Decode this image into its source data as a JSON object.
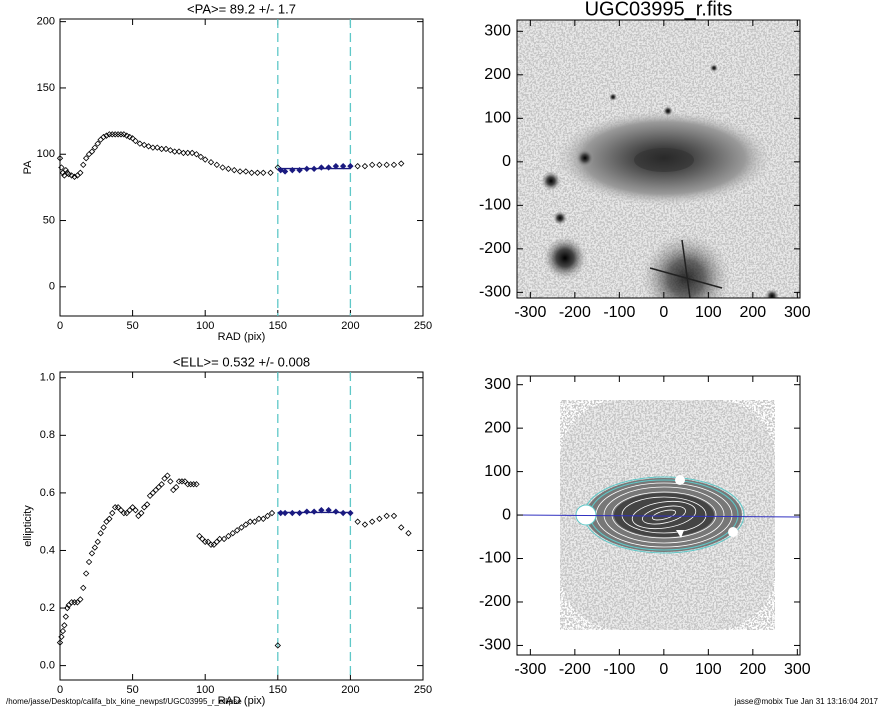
{
  "chart_data": [
    {
      "type": "scatter",
      "title": "<PA>=  89.2 +/-   1.7",
      "xlabel": "RAD (pix)",
      "ylabel": "PA",
      "xlim": [
        0,
        250
      ],
      "ylim": [
        -22,
        202
      ],
      "xticks": [
        0,
        50,
        100,
        150,
        200,
        250
      ],
      "yticks": [
        0,
        50,
        100,
        150,
        200
      ],
      "vlines": [
        150,
        200
      ],
      "vline_color": "#5fc8c8",
      "series": [
        {
          "color": "#000000",
          "x": [
            0,
            1,
            2,
            3,
            4,
            5,
            6,
            8,
            10,
            12,
            14,
            16,
            18,
            20,
            22,
            24,
            26,
            28,
            30,
            32,
            34,
            36,
            38,
            40,
            42,
            44,
            46,
            48,
            50,
            52,
            55,
            58,
            61,
            64,
            67,
            70,
            73,
            76,
            79,
            82,
            85,
            88,
            91,
            94,
            97,
            100,
            104,
            108,
            112,
            116,
            120,
            124,
            128,
            132,
            136,
            140,
            145,
            150,
            205,
            210,
            215,
            220,
            225,
            230,
            235
          ],
          "values": [
            97,
            90,
            86,
            84,
            88,
            86,
            85,
            84,
            83,
            84,
            86,
            92,
            97,
            100,
            102,
            105,
            108,
            111,
            113,
            114,
            115,
            115,
            115,
            115,
            115,
            115,
            114,
            113,
            112,
            110,
            108,
            107,
            106,
            105,
            105,
            104,
            104,
            103,
            102,
            102,
            101,
            101,
            101,
            100,
            98,
            96,
            94,
            92,
            90,
            89,
            88,
            87,
            87,
            86,
            86,
            86,
            86,
            90,
            91,
            91,
            92,
            92,
            92,
            92,
            93
          ]
        },
        {
          "color": "#1a1a80",
          "x": [
            152,
            155,
            160,
            165,
            170,
            175,
            180,
            185,
            190,
            195,
            200
          ],
          "values": [
            88,
            87,
            88,
            88,
            89,
            89,
            90,
            90,
            91,
            91,
            91
          ]
        }
      ],
      "fit": {
        "x": [
          150,
          200
        ],
        "value": 89.2,
        "color": "#1a1a80"
      }
    },
    {
      "type": "scatter",
      "title": "<ELL>= 0.532 +/-  0.008",
      "xlabel": "RAD (pix)",
      "ylabel": "ellipticity",
      "xlim": [
        0,
        250
      ],
      "ylim": [
        -0.05,
        1.02
      ],
      "xticks": [
        0,
        50,
        100,
        150,
        200,
        250
      ],
      "yticks": [
        {
          "value": 0,
          "label": "0.0"
        },
        0.2,
        0.4,
        0.6,
        0.8,
        {
          "value": 1,
          "label": "1.0"
        }
      ],
      "vlines": [
        150,
        200
      ],
      "vline_color": "#5fc8c8",
      "series": [
        {
          "color": "#000000",
          "x": [
            0,
            1,
            2,
            3,
            4,
            5,
            6,
            8,
            10,
            12,
            14,
            16,
            18,
            20,
            22,
            24,
            26,
            28,
            30,
            32,
            34,
            36,
            38,
            40,
            42,
            44,
            46,
            48,
            50,
            52,
            54,
            56,
            58,
            60,
            62,
            64,
            66,
            68,
            70,
            72,
            74,
            76,
            78,
            80,
            82,
            84,
            86,
            88,
            90,
            92,
            94,
            96,
            98,
            100,
            102,
            104,
            106,
            108,
            110,
            113,
            116,
            119,
            122,
            125,
            128,
            131,
            134,
            137,
            140,
            143,
            146,
            150,
            205,
            210,
            215,
            220,
            225,
            230,
            235,
            240
          ],
          "values": [
            0.08,
            0.1,
            0.12,
            0.14,
            0.17,
            0.2,
            0.21,
            0.22,
            0.22,
            0.22,
            0.23,
            0.27,
            0.32,
            0.36,
            0.39,
            0.41,
            0.43,
            0.46,
            0.48,
            0.5,
            0.51,
            0.53,
            0.55,
            0.55,
            0.54,
            0.53,
            0.53,
            0.54,
            0.55,
            0.54,
            0.52,
            0.53,
            0.55,
            0.56,
            0.59,
            0.6,
            0.61,
            0.62,
            0.63,
            0.65,
            0.66,
            0.64,
            0.61,
            0.62,
            0.64,
            0.64,
            0.64,
            0.63,
            0.63,
            0.63,
            0.63,
            0.45,
            0.44,
            0.43,
            0.43,
            0.42,
            0.42,
            0.43,
            0.44,
            0.44,
            0.45,
            0.46,
            0.47,
            0.48,
            0.49,
            0.5,
            0.5,
            0.51,
            0.51,
            0.52,
            0.53,
            0.07,
            0.5,
            0.49,
            0.5,
            0.51,
            0.52,
            0.52,
            0.48,
            0.46
          ]
        },
        {
          "color": "#1a1a80",
          "x": [
            152,
            155,
            160,
            165,
            170,
            175,
            180,
            185,
            190,
            195,
            200
          ],
          "values": [
            0.53,
            0.53,
            0.53,
            0.53,
            0.535,
            0.535,
            0.54,
            0.54,
            0.535,
            0.53,
            0.53
          ]
        }
      ],
      "fit": {
        "x": [
          150,
          200
        ],
        "value": 0.532,
        "color": "#1a1a80"
      }
    },
    {
      "type": "image",
      "title": "UGC03995_r.fits",
      "xlim": [
        -330,
        306
      ],
      "ylim": [
        -313,
        326
      ],
      "xticks": [
        -300,
        -200,
        -100,
        0,
        100,
        200,
        300
      ],
      "yticks": [
        -300,
        -200,
        -100,
        0,
        100,
        200,
        300
      ]
    },
    {
      "type": "image",
      "xlim": [
        -330,
        306
      ],
      "ylim": [
        -322,
        320
      ],
      "xticks": [
        -300,
        -200,
        -100,
        0,
        100,
        200,
        300
      ],
      "yticks": [
        -300,
        -200,
        -100,
        0,
        100,
        200,
        300
      ]
    }
  ],
  "footer": {
    "left": "/home/jasse/Desktop/califa_blx_kine_newpsf/UGC03995_r_ellipse",
    "right": "jasse@mobix  Tue Jan 31 13:16:04 2017"
  }
}
